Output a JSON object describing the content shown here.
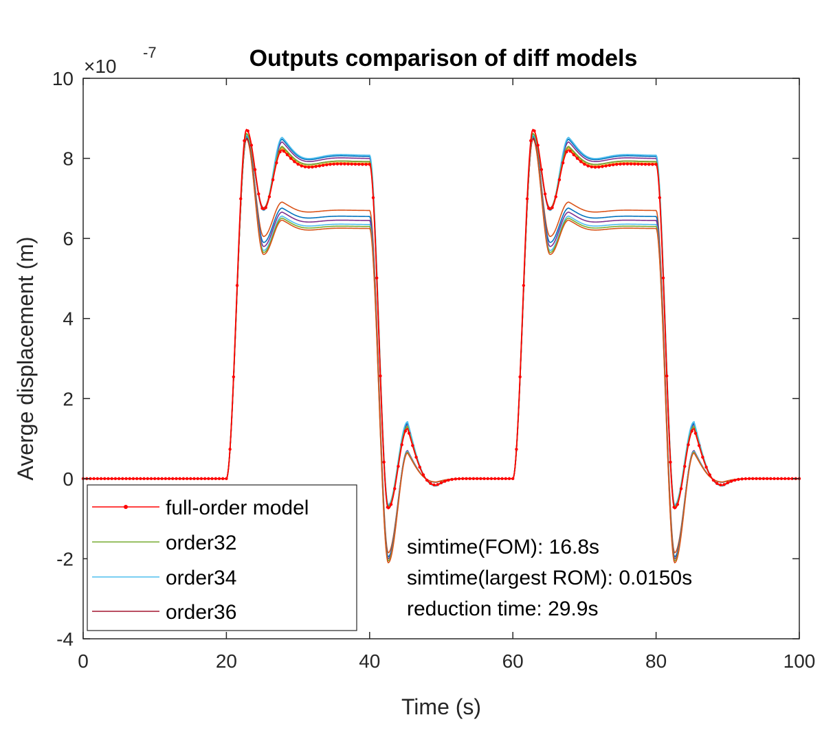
{
  "chart_data": {
    "type": "line",
    "title": "Outputs comparison of diff models",
    "xlabel": "Time (s)",
    "ylabel": "Averge displacement (m)",
    "y_exponent_base": "×10",
    "y_exponent": "-7",
    "xlim": [
      0,
      100
    ],
    "ylim": [
      -4,
      10
    ],
    "xticks": [
      "0",
      "20",
      "40",
      "60",
      "80",
      "100"
    ],
    "yticks": [
      "-4",
      "-2",
      "0",
      "2",
      "4",
      "6",
      "8",
      "10"
    ],
    "grid": false,
    "legend_position": "bottom-left",
    "annotations": [
      "simtime(FOM): 16.8s",
      "simtime(largest ROM): 0.0150s",
      "reduction time: 29.9s"
    ],
    "series": [
      {
        "name": "full-order model",
        "color": "#ff0000",
        "marker": "dot",
        "final": 7.85,
        "peak": 8.72,
        "dip": 6.72,
        "under": -0.75,
        "bounce": 1.25
      },
      {
        "name": "order32",
        "color": "#77ac30",
        "final": 7.92,
        "peak": 8.62,
        "dip": 6.74,
        "under": -0.7,
        "bounce": 1.3
      },
      {
        "name": "order34",
        "color": "#4dbeee",
        "final": 8.08,
        "peak": 8.58,
        "dip": 6.7,
        "under": -0.65,
        "bounce": 1.42
      },
      {
        "name": "order36",
        "color": "#a2142f",
        "final": 7.92,
        "peak": 8.5,
        "dip": 6.76,
        "under": -0.72,
        "bounce": 1.3
      }
    ],
    "other_series": [
      {
        "color": "#edb120",
        "final": 7.88,
        "peak": 8.6,
        "dip": 6.72,
        "under": -0.7,
        "bounce": 1.25
      },
      {
        "color": "#7e2f8e",
        "final": 8.0,
        "peak": 8.55,
        "dip": 6.72,
        "under": -0.68,
        "bounce": 1.35
      },
      {
        "color": "#0072bd",
        "final": 8.05,
        "peak": 8.6,
        "dip": 6.72,
        "under": -0.66,
        "bounce": 1.38
      },
      {
        "color": "#d95319",
        "final": 6.7,
        "peak": 8.55,
        "dip": 6.05,
        "under": -1.85,
        "bounce": 0.65
      },
      {
        "color": "#0072bd",
        "final": 6.55,
        "peak": 8.55,
        "dip": 5.9,
        "under": -1.95,
        "bounce": 0.7
      },
      {
        "color": "#7e2f8e",
        "final": 6.45,
        "peak": 8.5,
        "dip": 5.8,
        "under": -2.0,
        "bounce": 0.7
      },
      {
        "color": "#4dbeee",
        "final": 6.35,
        "peak": 8.5,
        "dip": 5.7,
        "under": -2.05,
        "bounce": 0.68
      },
      {
        "color": "#77ac30",
        "final": 6.3,
        "peak": 8.5,
        "dip": 5.65,
        "under": -2.05,
        "bounce": 0.66
      },
      {
        "color": "#d95319",
        "final": 6.25,
        "peak": 8.48,
        "dip": 5.6,
        "under": -2.1,
        "bounce": 0.64
      }
    ]
  }
}
